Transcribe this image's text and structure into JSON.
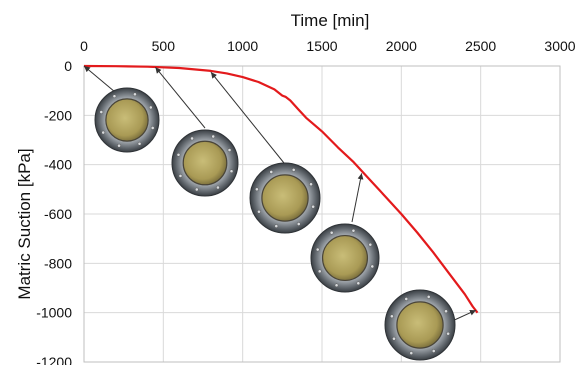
{
  "chart_data": {
    "type": "line",
    "title": "",
    "xlabel": "Time [min]",
    "ylabel": "Matric Suction [kPa]",
    "xlim": [
      0,
      3000
    ],
    "ylim": [
      -1200,
      0
    ],
    "x_ticks": [
      0,
      500,
      1000,
      1500,
      2000,
      2500,
      3000
    ],
    "y_ticks": [
      0,
      -200,
      -400,
      -600,
      -800,
      -1000,
      -1200
    ],
    "x_axis_position": "top",
    "grid": true,
    "legend": "none",
    "series": [
      {
        "color": "#e31a1c",
        "x": [
          0,
          200,
          400,
          600,
          800,
          900,
          1000,
          1100,
          1200,
          1250,
          1270,
          1300,
          1350,
          1400,
          1500,
          1600,
          1700,
          1800,
          1900,
          2000,
          2100,
          2200,
          2300,
          2400,
          2450,
          2480
        ],
        "y": [
          0,
          -1,
          -3,
          -8,
          -20,
          -30,
          -45,
          -65,
          -95,
          -120,
          -125,
          -140,
          -175,
          -210,
          -265,
          -330,
          -390,
          -460,
          -530,
          -600,
          -675,
          -755,
          -840,
          -925,
          -975,
          -1000
        ]
      }
    ],
    "annotations": [
      {
        "type": "specimen-photo",
        "arrow_to": [
          0,
          0
        ]
      },
      {
        "type": "specimen-photo",
        "arrow_to": [
          450,
          -5
        ]
      },
      {
        "type": "specimen-photo",
        "arrow_to": [
          800,
          -25
        ]
      },
      {
        "type": "specimen-photo",
        "arrow_to": [
          1750,
          -435
        ]
      },
      {
        "type": "specimen-photo",
        "arrow_to": [
          2470,
          -990
        ]
      }
    ]
  }
}
